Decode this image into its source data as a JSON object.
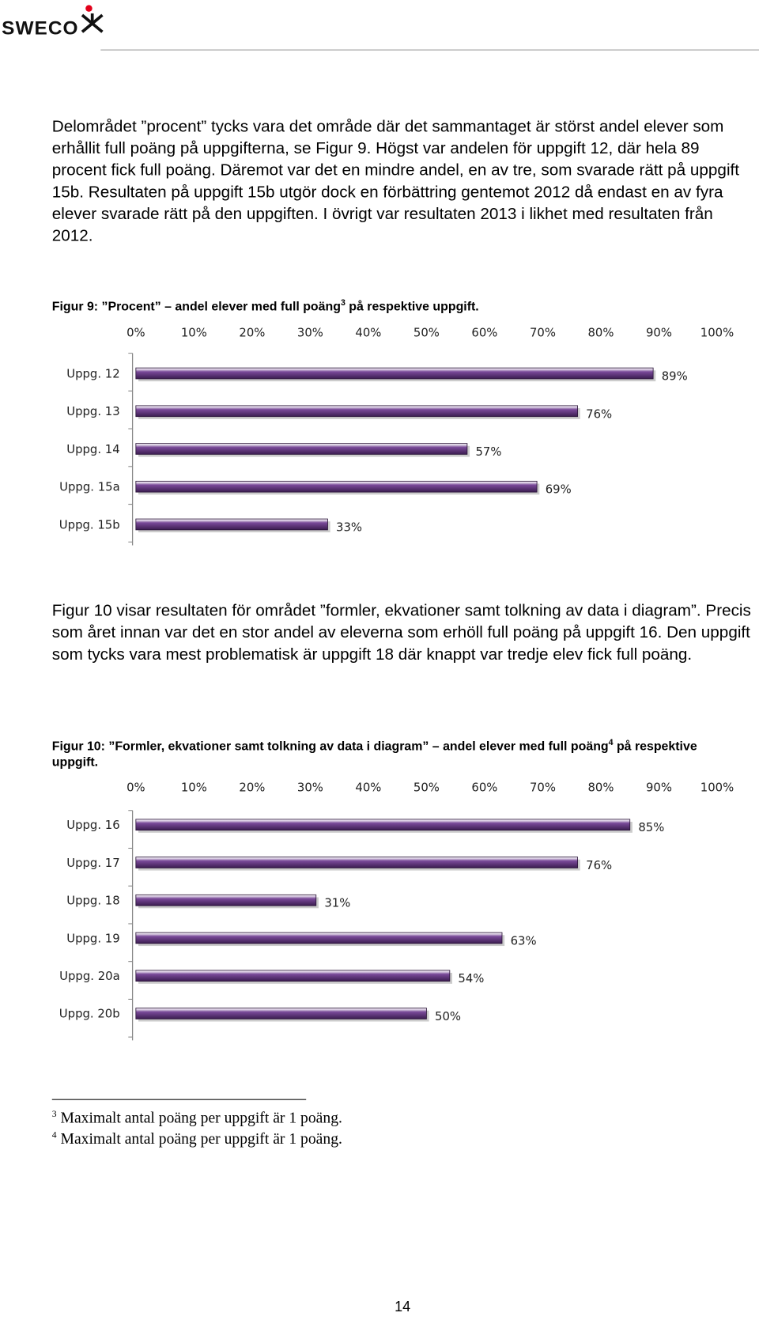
{
  "header": {
    "logo": "SWECO"
  },
  "paragraphs": [
    "Delområdet ”procent” tycks vara det område där det sammantaget är störst andel elever som erhållit full poäng på uppgifterna, se Figur 9. Högst var andelen för uppgift 12, där hela 89 procent fick full poäng. Däremot var det en mindre andel, en av tre, som svarade rätt på uppgift 15b. Resultaten på uppgift 15b utgör dock en förbättring gentemot 2012 då endast en av fyra elever svarade rätt på den uppgiften. I övrigt var resultaten 2013 i likhet med resultaten från 2012.",
    "Figur 10 visar resultaten för området ”formler, ekvationer samt tolkning av data i diagram”. Precis som året innan var det en stor andel av eleverna som erhöll full poäng på uppgift 16. Den uppgift som tycks vara mest problematisk är uppgift 18 där knappt var tredje elev fick full poäng."
  ],
  "chart_data": [
    {
      "type": "bar",
      "orientation": "horizontal",
      "title": "Figur 9: ”Procent” – andel elever med full poäng",
      "title_note": "3",
      "title_end": " på respektive uppgift.",
      "categories": [
        "Uppg. 12",
        "Uppg. 13",
        "Uppg. 14",
        "Uppg. 15a",
        "Uppg. 15b"
      ],
      "values": [
        89,
        76,
        57,
        69,
        33
      ],
      "value_labels": [
        "89%",
        "76%",
        "57%",
        "69%",
        "33%"
      ],
      "color": "#7a4a9a",
      "xlim": [
        0,
        100
      ],
      "xticks": [
        {
          "value": 0,
          "label": "0%"
        },
        {
          "value": 10,
          "label": "10%"
        },
        {
          "value": 20,
          "label": "20%"
        },
        {
          "value": 30,
          "label": "30%"
        },
        {
          "value": 40,
          "label": "40%"
        },
        {
          "value": 50,
          "label": "50%"
        },
        {
          "value": 60,
          "label": "60%"
        },
        {
          "value": 70,
          "label": "70%"
        },
        {
          "value": 80,
          "label": "80%"
        },
        {
          "value": 90,
          "label": "90%"
        },
        {
          "value": 100,
          "label": "100%"
        }
      ],
      "grid": false
    },
    {
      "type": "bar",
      "orientation": "horizontal",
      "title": "Figur 10: ”Formler, ekvationer samt tolkning av data i diagram” – andel elever med full poäng",
      "title_note": "4",
      "title_end": " på respektive uppgift.",
      "categories": [
        "Uppg. 16",
        "Uppg. 17",
        "Uppg. 18",
        "Uppg. 19",
        "Uppg. 20a",
        "Uppg. 20b"
      ],
      "values": [
        85,
        76,
        31,
        63,
        54,
        50
      ],
      "value_labels": [
        "85%",
        "76%",
        "31%",
        "63%",
        "54%",
        "50%"
      ],
      "color": "#7a4a9a",
      "xlim": [
        0,
        100
      ],
      "xticks": [
        {
          "value": 0,
          "label": "0%"
        },
        {
          "value": 10,
          "label": "10%"
        },
        {
          "value": 20,
          "label": "20%"
        },
        {
          "value": 30,
          "label": "30%"
        },
        {
          "value": 40,
          "label": "40%"
        },
        {
          "value": 50,
          "label": "50%"
        },
        {
          "value": 60,
          "label": "60%"
        },
        {
          "value": 70,
          "label": "70%"
        },
        {
          "value": 80,
          "label": "80%"
        },
        {
          "value": 90,
          "label": "90%"
        },
        {
          "value": 100,
          "label": "100%"
        }
      ],
      "grid": false
    }
  ],
  "footnotes": [
    {
      "number": "3",
      "text": "Maximalt antal poäng per uppgift är 1 poäng."
    },
    {
      "number": "4",
      "text": "Maximalt antal poäng per uppgift är 1 poäng."
    }
  ],
  "page_number": "14"
}
